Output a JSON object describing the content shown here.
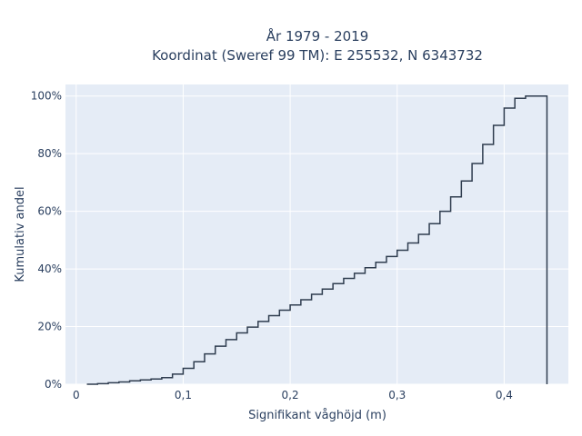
{
  "chart_data": {
    "type": "line",
    "title_line1": "År 1979 - 2019",
    "title_line2": "Koordinat (Sweref 99 TM): E 255532, N 6343732",
    "xlabel": "Signifikant våghöjd (m)",
    "ylabel": "Kumulativ andel",
    "xlim": [
      -0.01,
      0.46
    ],
    "ylim": [
      0,
      1.04
    ],
    "x_ticks": [
      0,
      0.1,
      0.2,
      0.3,
      0.4
    ],
    "x_tick_labels": [
      "0",
      "0,1",
      "0,2",
      "0,3",
      "0,4"
    ],
    "y_ticks": [
      0,
      0.2,
      0.4,
      0.6,
      0.8,
      1.0
    ],
    "y_tick_labels": [
      "0%",
      "20%",
      "40%",
      "60%",
      "80%",
      "100%"
    ],
    "grid": true,
    "line_shape": "step",
    "series": [
      {
        "x": [
          0.01,
          0.02,
          0.03,
          0.04,
          0.05,
          0.06,
          0.07,
          0.08,
          0.09,
          0.1,
          0.11,
          0.12,
          0.13,
          0.14,
          0.15,
          0.16,
          0.17,
          0.18,
          0.19,
          0.2,
          0.21,
          0.22,
          0.23,
          0.24,
          0.25,
          0.26,
          0.27,
          0.28,
          0.29,
          0.3,
          0.31,
          0.32,
          0.33,
          0.34,
          0.35,
          0.36,
          0.37,
          0.38,
          0.39,
          0.4,
          0.41,
          0.42,
          0.43,
          0.44
        ],
        "y": [
          0.0,
          0.002,
          0.005,
          0.008,
          0.012,
          0.015,
          0.018,
          0.023,
          0.035,
          0.055,
          0.078,
          0.105,
          0.132,
          0.155,
          0.178,
          0.198,
          0.218,
          0.238,
          0.257,
          0.275,
          0.293,
          0.312,
          0.33,
          0.349,
          0.367,
          0.385,
          0.404,
          0.423,
          0.443,
          0.465,
          0.49,
          0.52,
          0.557,
          0.6,
          0.65,
          0.705,
          0.766,
          0.832,
          0.898,
          0.958,
          0.992,
          1.0,
          1.0,
          0.0
        ]
      }
    ],
    "colors": {
      "line": "#2f3d4f",
      "plot_bg": "#e5ecf6",
      "grid": "#ffffff",
      "text": "#2a3f5f"
    }
  }
}
